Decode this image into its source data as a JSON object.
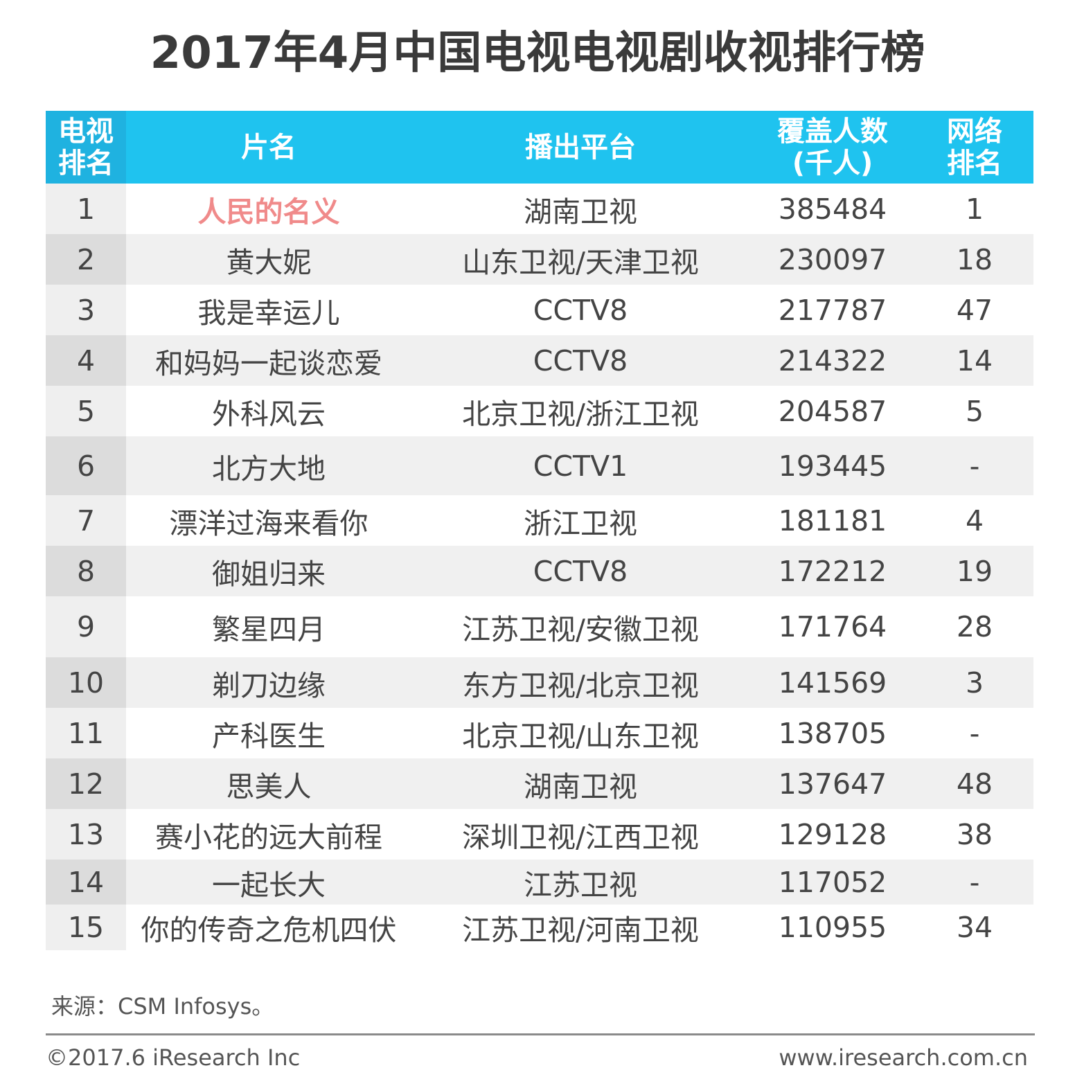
{
  "title": "2017年4月中国电视电视剧收视排行榜",
  "header": {
    "rank_line1": "电视",
    "rank_line2": "排名",
    "name": "片名",
    "platform": "播出平台",
    "cover_line1": "覆盖人数",
    "cover_line2": "(千人)",
    "net_line1": "网络",
    "net_line2": "排名"
  },
  "rows": [
    {
      "rank": "1",
      "name": "人民的名义",
      "platform": "湖南卫视",
      "cover": "385484",
      "net": "1"
    },
    {
      "rank": "2",
      "name": "黄大妮",
      "platform": "山东卫视/天津卫视",
      "cover": "230097",
      "net": "18"
    },
    {
      "rank": "3",
      "name": "我是幸运儿",
      "platform": "CCTV8",
      "cover": "217787",
      "net": "47"
    },
    {
      "rank": "4",
      "name": "和妈妈一起谈恋爱",
      "platform": "CCTV8",
      "cover": "214322",
      "net": "14"
    },
    {
      "rank": "5",
      "name": "外科风云",
      "platform": "北京卫视/浙江卫视",
      "cover": "204587",
      "net": "5"
    },
    {
      "rank": "6",
      "name": "北方大地",
      "platform": "CCTV1",
      "cover": "193445",
      "net": "-"
    },
    {
      "rank": "7",
      "name": "漂洋过海来看你",
      "platform": "浙江卫视",
      "cover": "181181",
      "net": "4"
    },
    {
      "rank": "8",
      "name": "御姐归来",
      "platform": "CCTV8",
      "cover": "172212",
      "net": "19"
    },
    {
      "rank": "9",
      "name": "繁星四月",
      "platform": "江苏卫视/安徽卫视",
      "cover": "171764",
      "net": "28"
    },
    {
      "rank": "10",
      "name": "剃刀边缘",
      "platform": "东方卫视/北京卫视",
      "cover": "141569",
      "net": "3"
    },
    {
      "rank": "11",
      "name": "产科医生",
      "platform": "北京卫视/山东卫视",
      "cover": "138705",
      "net": "-"
    },
    {
      "rank": "12",
      "name": "思美人",
      "platform": "湖南卫视",
      "cover": "137647",
      "net": "48"
    },
    {
      "rank": "13",
      "name": "赛小花的远大前程",
      "platform": "深圳卫视/江西卫视",
      "cover": "129128",
      "net": "38"
    },
    {
      "rank": "14",
      "name": "一起长大",
      "platform": "江苏卫视",
      "cover": "117052",
      "net": "-"
    },
    {
      "rank": "15",
      "name": "你的传奇之危机四伏",
      "platform": "江苏卫视/河南卫视",
      "cover": "110955",
      "net": "34"
    }
  ],
  "highlight_color": "#f08a8a",
  "header_color": "#1fc3ef",
  "source": "来源：CSM Infosys。",
  "copyright": "©2017.6 iResearch Inc",
  "website": "www.iresearch.com.cn"
}
